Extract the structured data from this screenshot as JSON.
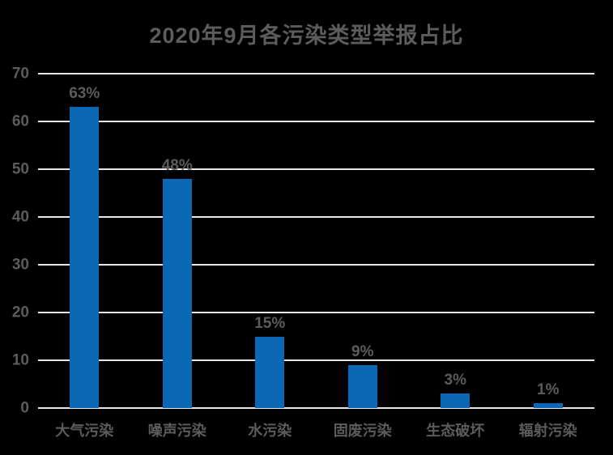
{
  "chart_data": {
    "type": "bar",
    "title": "2020年9月各污染类型举报占比",
    "categories": [
      "大气污染",
      "噪声污染",
      "水污染",
      "固废污染",
      "生态破坏",
      "辐射污染"
    ],
    "values": [
      63,
      48,
      15,
      9,
      3,
      1
    ],
    "data_labels": [
      "63%",
      "48%",
      "15%",
      "9%",
      "3%",
      "1%"
    ],
    "xlabel": "",
    "ylabel": "",
    "ylim": [
      0,
      70
    ],
    "yticks": [
      0,
      10,
      20,
      30,
      40,
      50,
      60,
      70
    ],
    "grid": true,
    "legend": false,
    "colors": {
      "background": "#000000",
      "bar": "#0a68b4",
      "text": "#5c5c5c",
      "gridline": "#e8e8e8"
    }
  }
}
